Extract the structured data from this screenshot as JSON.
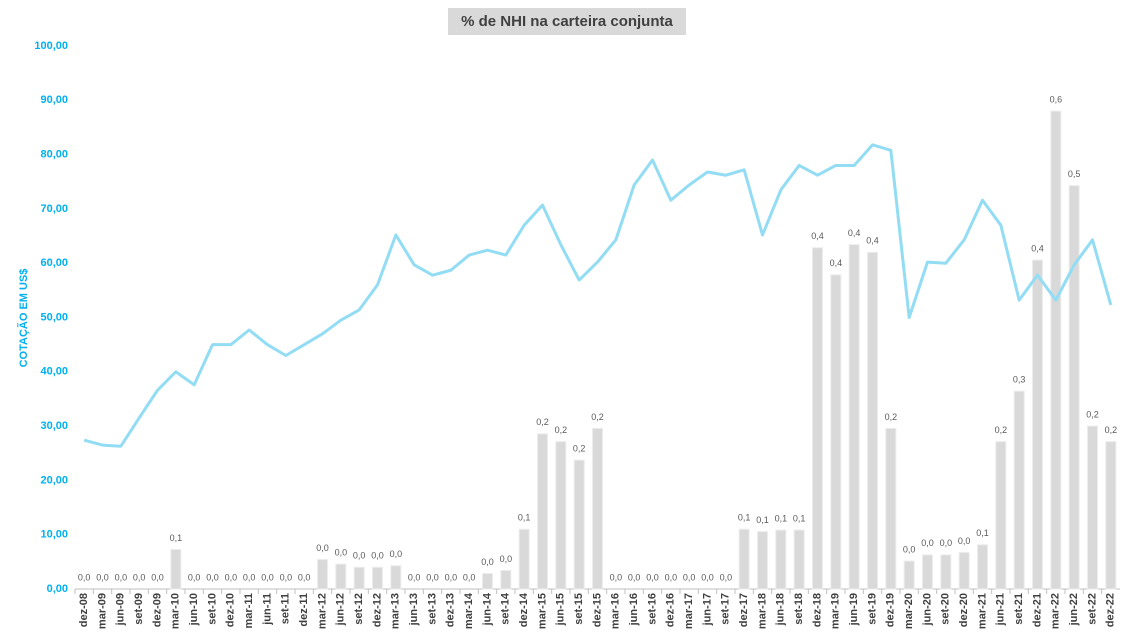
{
  "chart_data": {
    "type": "combo",
    "title": "% de NHI na carteira conjunta",
    "y_label": "COTAÇÃO EM US$",
    "categories": [
      "dez-08",
      "mar-09",
      "jun-09",
      "set-09",
      "dez-09",
      "mar-10",
      "jun-10",
      "set-10",
      "dez-10",
      "mar-11",
      "jun-11",
      "set-11",
      "dez-11",
      "mar-12",
      "jun-12",
      "set-12",
      "dez-12",
      "mar-13",
      "jun-13",
      "set-13",
      "dez-13",
      "mar-14",
      "jun-14",
      "set-14",
      "dez-14",
      "mar-15",
      "jun-15",
      "set-15",
      "dez-15",
      "mar-16",
      "jun-16",
      "set-16",
      "dez-16",
      "mar-17",
      "jun-17",
      "set-17",
      "dez-17",
      "mar-18",
      "jun-18",
      "set-18",
      "dez-18",
      "mar-19",
      "jun-19",
      "set-19",
      "dez-19",
      "mar-20",
      "jun-20",
      "set-20",
      "dez-20",
      "mar-21",
      "jun-21",
      "set-21",
      "dez-21",
      "mar-22",
      "jun-22",
      "set-22",
      "dez-22"
    ],
    "series": [
      {
        "type": "bar",
        "axis": "y2",
        "color": "#d9d9d9",
        "values": [
          0,
          0,
          0,
          0,
          0,
          0.051,
          0,
          0,
          0,
          0,
          0,
          0,
          0,
          0.038,
          0.032,
          0.028,
          0.028,
          0.03,
          0,
          0,
          0,
          0,
          0.02,
          0.024,
          0.077,
          0.2,
          0.19,
          0.166,
          0.207,
          0,
          0,
          0,
          0,
          0,
          0,
          0,
          0.077,
          0.074,
          0.076,
          0.076,
          0.44,
          0.405,
          0.444,
          0.434,
          0.207,
          0.036,
          0.044,
          0.044,
          0.047,
          0.057,
          0.19,
          0.255,
          0.424,
          0.616,
          0.52,
          0.21,
          0.19
        ],
        "value_labels": [
          "0,0",
          "0,0",
          "0,0",
          "0,0",
          "0,0",
          "0,1",
          "0,0",
          "0,0",
          "0,0",
          "0,0",
          "0,0",
          "0,0",
          "0,0",
          "0,0",
          "0,0",
          "0,0",
          "0,0",
          "0,0",
          "0,0",
          "0,0",
          "0,0",
          "0,0",
          "0,0",
          "0,0",
          "0,1",
          "0,2",
          "0,2",
          "0,2",
          "0,2",
          "0,0",
          "0,0",
          "0,0",
          "0,0",
          "0,0",
          "0,0",
          "0,0",
          "0,1",
          "0,1",
          "0,1",
          "0,1",
          "0,4",
          "0,4",
          "0,4",
          "0,4",
          "0,2",
          "0,0",
          "0,0",
          "0,0",
          "0,0",
          "0,1",
          "0,2",
          "0,3",
          "0,4",
          "0,6",
          "0,5",
          "0,2",
          "0,2"
        ]
      },
      {
        "type": "line",
        "color": "#92dcf4",
        "values": [
          27.4,
          26.5,
          26.3,
          31.5,
          36.6,
          40,
          37.6,
          45,
          45,
          47.7,
          45,
          43,
          45,
          47,
          49.5,
          51.4,
          56,
          65.2,
          59.7,
          57.8,
          58.7,
          61.5,
          62.4,
          61.5,
          67,
          70.7,
          63.4,
          56.9,
          60.2,
          64.3,
          74.4,
          79,
          71.6,
          74.4,
          76.8,
          76.2,
          77.2,
          65.2,
          73.5,
          78,
          76.2,
          78,
          78,
          81.8,
          80.8,
          50,
          60.2,
          60,
          64.3,
          71.6,
          67,
          53.2,
          57.8,
          53.2,
          59.7,
          64.3,
          52.3
        ]
      }
    ],
    "ylim": [
      0,
      100
    ],
    "yticks": [
      {
        "value": 0,
        "label": "0,00"
      },
      {
        "value": 10,
        "label": "10,00"
      },
      {
        "value": 20,
        "label": "20,00"
      },
      {
        "value": 30,
        "label": "30,00"
      },
      {
        "value": 40,
        "label": "40,00"
      },
      {
        "value": 50,
        "label": "50,00"
      },
      {
        "value": 60,
        "label": "60,00"
      },
      {
        "value": 70,
        "label": "70,00"
      },
      {
        "value": 80,
        "label": "80,00"
      },
      {
        "value": 90,
        "label": "90,00"
      },
      {
        "value": 100,
        "label": "100,00"
      }
    ],
    "y2lim": [
      0,
      0.7
    ]
  }
}
